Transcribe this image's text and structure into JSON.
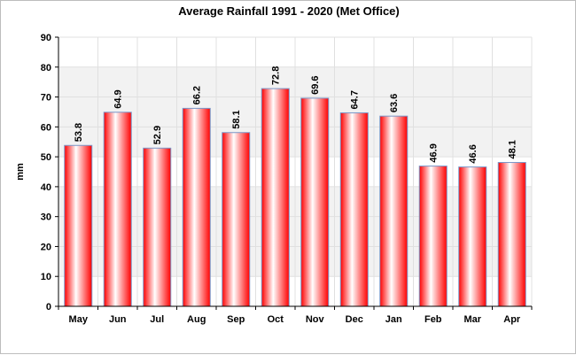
{
  "chart_data": {
    "type": "bar",
    "title": "Average Rainfall 1991 - 2020 (Met Office)",
    "xlabel": "",
    "ylabel": "mm",
    "ylim": [
      0,
      90
    ],
    "yticks": [
      0,
      10,
      20,
      30,
      40,
      50,
      60,
      70,
      80,
      90
    ],
    "grid": true,
    "legend": "none",
    "categories": [
      "May",
      "Jun",
      "Jul",
      "Aug",
      "Sep",
      "Oct",
      "Nov",
      "Dec",
      "Jan",
      "Feb",
      "Mar",
      "Apr"
    ],
    "values": [
      53.8,
      64.9,
      52.9,
      66.2,
      58.1,
      72.8,
      69.6,
      64.7,
      63.6,
      46.9,
      46.6,
      48.1
    ],
    "colors": {
      "bar_edge": "#ff0000",
      "bar_center": "#ffffff",
      "bar_outline": "#7a96c8",
      "band": "#f2f2f2",
      "grid": "#e0e0e0"
    }
  }
}
